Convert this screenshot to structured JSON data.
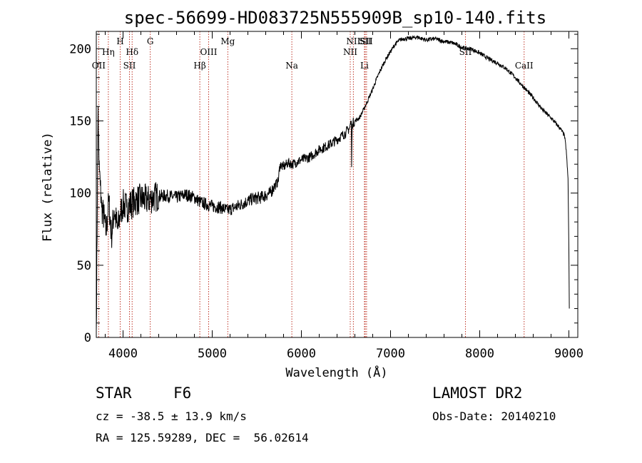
{
  "chart_data": {
    "type": "line",
    "title": "spec-56699-HD083725N555909B_sp10-140.fits",
    "xlabel": "Wavelength (Å)",
    "ylabel": "Flux (relative)",
    "xlim": [
      3700,
      9100
    ],
    "ylim": [
      0,
      212
    ],
    "x_ticks": [
      4000,
      5000,
      6000,
      7000,
      8000,
      9000
    ],
    "y_ticks": [
      0,
      50,
      100,
      150,
      200
    ],
    "grid": false,
    "series": [
      {
        "x": [
          3700,
          3720,
          3730,
          3745,
          3760,
          3790,
          3810,
          3840,
          3870,
          3900,
          3940,
          3970,
          4000,
          4040,
          4100,
          4150,
          4200,
          4280,
          4340,
          4400,
          4500,
          4600,
          4700,
          4800,
          4860,
          4900,
          5000,
          5100,
          5170,
          5250,
          5350,
          5450,
          5550,
          5650,
          5700,
          5740,
          5760,
          5800,
          5850,
          5900,
          6000,
          6100,
          6200,
          6300,
          6400,
          6500,
          6540,
          6560,
          6563,
          6570,
          6600,
          6650,
          6700,
          6750,
          6800,
          6850,
          6900,
          6950,
          7000,
          7050,
          7100,
          7150,
          7200,
          7300,
          7400,
          7500,
          7600,
          7700,
          7800,
          7850,
          7900,
          8000,
          8100,
          8200,
          8300,
          8400,
          8500,
          8600,
          8700,
          8800,
          8900,
          8950,
          8970,
          8990,
          9000,
          9005
        ],
        "y": [
          5,
          160,
          120,
          105,
          90,
          82,
          72,
          95,
          70,
          88,
          75,
          86,
          92,
          90,
          93,
          95,
          96,
          95,
          97,
          98,
          98,
          97,
          99,
          97,
          94,
          93,
          91,
          90,
          88,
          90,
          93,
          96,
          97,
          100,
          105,
          108,
          120,
          118,
          121,
          120,
          123,
          125,
          130,
          133,
          137,
          142,
          145,
          150,
          118,
          148,
          150,
          152,
          158,
          165,
          172,
          180,
          187,
          193,
          198,
          203,
          206,
          207,
          207,
          208,
          206,
          207,
          205,
          204,
          201,
          200,
          200,
          197,
          193,
          190,
          186,
          180,
          173,
          166,
          158,
          152,
          145,
          140,
          130,
          110,
          60,
          20
        ]
      }
    ],
    "spectral_lines": [
      {
        "label": "OII",
        "x": 3727,
        "row": 3
      },
      {
        "label": "Hη",
        "x": 3835,
        "row": 2
      },
      {
        "label": "H",
        "x": 3968,
        "row": 1
      },
      {
        "label": "SII",
        "x": 4072,
        "row": 3
      },
      {
        "label": "Hδ",
        "x": 4102,
        "row": 2
      },
      {
        "label": "G",
        "x": 4305,
        "row": 1
      },
      {
        "label": "Hβ",
        "x": 4861,
        "row": 3
      },
      {
        "label": "OIII",
        "x": 4960,
        "row": 2
      },
      {
        "label": "Mg",
        "x": 5175,
        "row": 1
      },
      {
        "label": "Na",
        "x": 5893,
        "row": 3
      },
      {
        "label": "NII",
        "x": 6548,
        "row": 2
      },
      {
        "label": "NII",
        "x": 6583,
        "row": 1
      },
      {
        "label": "Li",
        "x": 6707,
        "row": 3
      },
      {
        "label": "SII",
        "x": 6716,
        "row": 1
      },
      {
        "label": "SII",
        "x": 6731,
        "row": 1
      },
      {
        "label": "SII",
        "x": 7840,
        "row": 2
      },
      {
        "label": "CaII",
        "x": 8498,
        "row": 3
      }
    ]
  },
  "info": {
    "class_label": "STAR",
    "subclass": "F6",
    "survey": "LAMOST DR2",
    "cz": "cz = -38.5 ± 13.9 km/s",
    "obs_date": "Obs-Date: 20140210",
    "coords": "RA = 125.59289, DEC =  56.02614"
  },
  "colors": {
    "spectrum": "#000000",
    "line_markers": "#c0392b"
  }
}
